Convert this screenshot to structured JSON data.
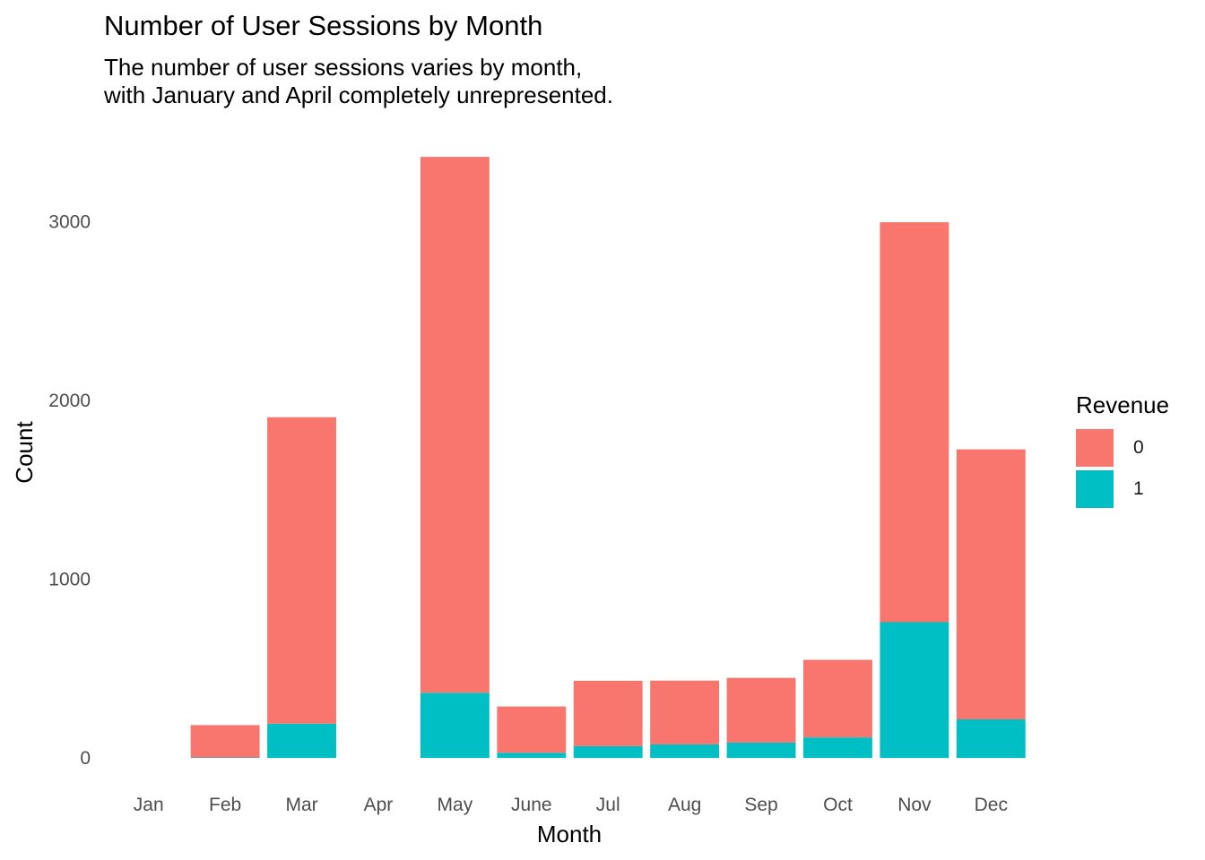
{
  "title": "Number of User Sessions by Month",
  "subtitle_lines": [
    "The number of user sessions varies by month,",
    "with January and April completely unrepresented."
  ],
  "chart_data": {
    "type": "bar",
    "stacked": true,
    "categories": [
      "Jan",
      "Feb",
      "Mar",
      "Apr",
      "May",
      "June",
      "Jul",
      "Aug",
      "Sep",
      "Oct",
      "Nov",
      "Dec"
    ],
    "series": [
      {
        "name": "0",
        "color": "#F8766D",
        "values": [
          0,
          181,
          1715,
          0,
          2999,
          259,
          366,
          357,
          362,
          434,
          2238,
          1511
        ]
      },
      {
        "name": "1",
        "color": "#00BFC4",
        "values": [
          0,
          3,
          192,
          0,
          365,
          29,
          66,
          76,
          86,
          115,
          760,
          216
        ]
      }
    ],
    "xlabel": "Month",
    "ylabel": "Count",
    "yticks": [
      0,
      1000,
      2000,
      3000
    ],
    "ylim": [
      -170,
      3540
    ],
    "grid": false,
    "legend": {
      "title": "Revenue",
      "position": "right"
    }
  }
}
